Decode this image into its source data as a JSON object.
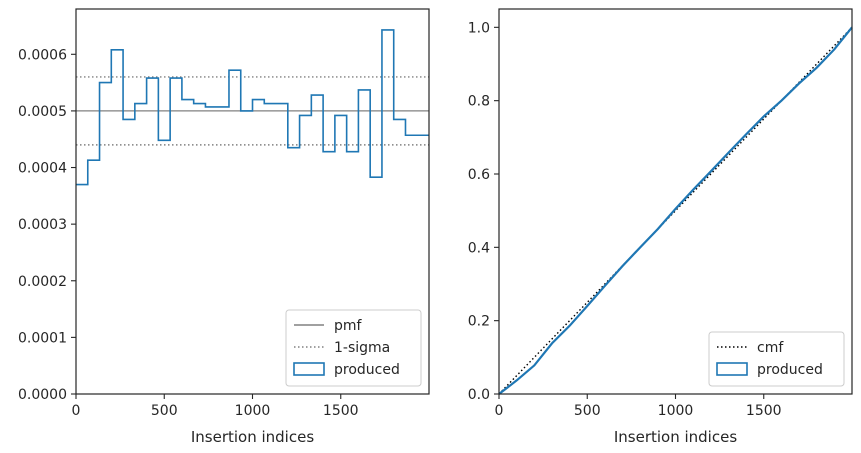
{
  "chart_data": [
    {
      "type": "step-histogram",
      "xlabel": "Insertion indices",
      "ylabel": "",
      "xlim": [
        0,
        2000
      ],
      "ylim": [
        0,
        0.00068
      ],
      "xticks": [
        0,
        500,
        1000,
        1500
      ],
      "yticks": [
        0,
        0.0001,
        0.0002,
        0.0003,
        0.0004,
        0.0005,
        0.0006
      ],
      "ytick_labels": [
        "0.0000",
        "0.0001",
        "0.0002",
        "0.0003",
        "0.0004",
        "0.0005",
        "0.0006"
      ],
      "xtick_labels": [
        "0",
        "500",
        "1000",
        "1500"
      ],
      "grid": false,
      "legend_position": "lower-right",
      "legend": [
        {
          "label": "pmf",
          "style": "solid",
          "color": "#808080"
        },
        {
          "label": "1-sigma",
          "style": "dotted",
          "color": "#808080"
        },
        {
          "label": "produced",
          "style": "box",
          "color": "#1f77b4"
        }
      ],
      "pmf": 0.0005,
      "sigma_band": [
        0.00044,
        0.00056
      ],
      "bin_width": 66.67,
      "values": [
        0.00037,
        0.000413,
        0.00055,
        0.000608,
        0.000485,
        0.000513,
        0.000558,
        0.000448,
        0.000558,
        0.00052,
        0.000513,
        0.000507,
        0.000507,
        0.000572,
        0.0005,
        0.00052,
        0.000513,
        0.000513,
        0.000435,
        0.000492,
        0.000528,
        0.000428,
        0.000492,
        0.000428,
        0.000537,
        0.000383,
        0.000643,
        0.000485,
        0.000457,
        0.000457
      ]
    },
    {
      "type": "line",
      "xlabel": "Insertion indices",
      "ylabel": "",
      "xlim": [
        0,
        2000
      ],
      "ylim": [
        0,
        1.05
      ],
      "xticks": [
        0,
        500,
        1000,
        1500
      ],
      "yticks": [
        0,
        0.2,
        0.4,
        0.6,
        0.8,
        1.0
      ],
      "ytick_labels": [
        "0.0",
        "0.2",
        "0.4",
        "0.6",
        "0.8",
        "1.0"
      ],
      "xtick_labels": [
        "0",
        "500",
        "1000",
        "1500"
      ],
      "grid": false,
      "legend_position": "lower-right",
      "legend": [
        {
          "label": "cmf",
          "style": "dotted",
          "color": "#000000"
        },
        {
          "label": "produced",
          "style": "box",
          "color": "#1f77b4"
        }
      ],
      "series": [
        {
          "name": "cmf",
          "x": [
            0,
            2000
          ],
          "y": [
            0,
            1.0
          ]
        },
        {
          "name": "produced",
          "x": [
            0,
            100,
            200,
            300,
            400,
            500,
            600,
            700,
            800,
            900,
            1000,
            1100,
            1200,
            1300,
            1400,
            1500,
            1600,
            1700,
            1800,
            1900,
            2000
          ],
          "y": [
            0,
            0.037,
            0.078,
            0.138,
            0.186,
            0.24,
            0.295,
            0.349,
            0.4,
            0.45,
            0.505,
            0.557,
            0.607,
            0.658,
            0.708,
            0.757,
            0.8,
            0.847,
            0.89,
            0.94,
            1.0
          ]
        }
      ]
    }
  ]
}
